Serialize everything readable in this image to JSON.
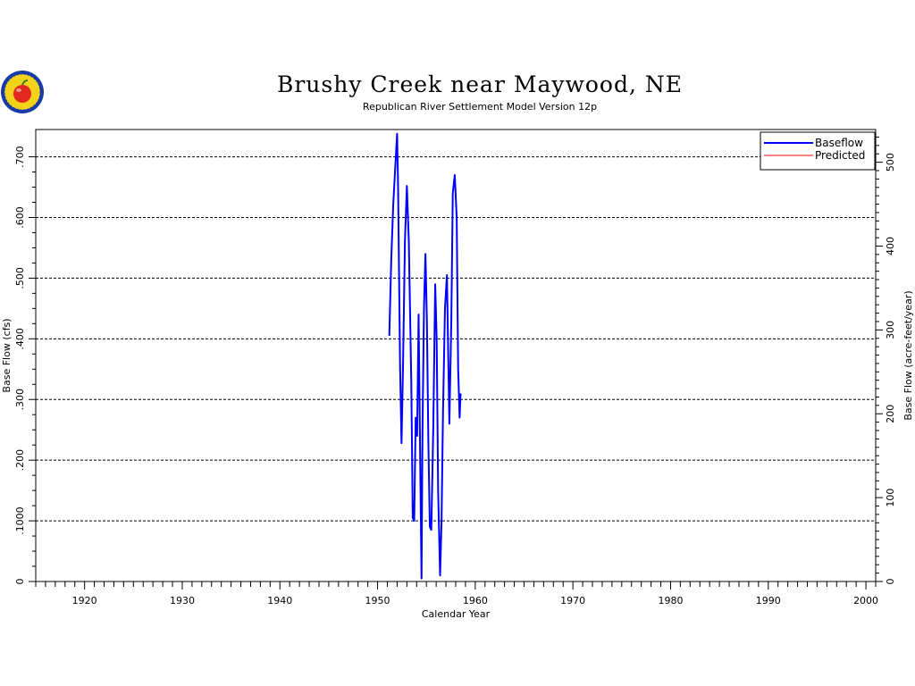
{
  "chart_data": {
    "type": "line",
    "title": "Brushy Creek near Maywood, NE",
    "subtitle": "Republican River Settlement Model Version 12p",
    "xlabel": "Calendar Year",
    "ylabel": "Base Flow (cfs)",
    "y2label": "Base Flow (acre-feet/year)",
    "xlim": [
      1915,
      2001
    ],
    "ylim": [
      0,
      0.745
    ],
    "y2lim": [
      0,
      539
    ],
    "x_ticks": [
      1920,
      1930,
      1940,
      1950,
      1960,
      1970,
      1980,
      1990,
      2000
    ],
    "y_ticks": [
      0,
      0.1,
      0.2,
      0.3,
      0.4,
      0.5,
      0.6,
      0.7
    ],
    "y_tick_labels": [
      "0",
      ".1000",
      ".200",
      ".300",
      ".400",
      ".500",
      ".600",
      ".700"
    ],
    "y2_ticks": [
      0,
      100,
      200,
      300,
      400,
      500
    ],
    "grid": "horizontal dashed",
    "legend_position": "top-right",
    "series": [
      {
        "name": "Baseflow",
        "color": "#0000ff",
        "x": [
          1951.2,
          1951.4,
          1951.6,
          1951.8,
          1952.0,
          1952.1,
          1952.3,
          1952.45,
          1952.6,
          1952.8,
          1953.0,
          1953.2,
          1953.45,
          1953.6,
          1953.75,
          1953.9,
          1954.05,
          1954.2,
          1954.35,
          1954.5,
          1954.6,
          1954.75,
          1954.9,
          1955.05,
          1955.2,
          1955.35,
          1955.5,
          1955.7,
          1955.9,
          1956.05,
          1956.2,
          1956.4,
          1956.55,
          1956.7,
          1956.9,
          1957.1,
          1957.35,
          1957.55,
          1957.7,
          1957.9,
          1958.1,
          1958.25,
          1958.4,
          1958.5
        ],
        "y": [
          0.405,
          0.53,
          0.62,
          0.68,
          0.738,
          0.65,
          0.36,
          0.228,
          0.35,
          0.56,
          0.652,
          0.56,
          0.33,
          0.105,
          0.1,
          0.27,
          0.24,
          0.44,
          0.22,
          0.005,
          0.25,
          0.45,
          0.54,
          0.43,
          0.23,
          0.09,
          0.085,
          0.25,
          0.49,
          0.4,
          0.15,
          0.01,
          0.1,
          0.28,
          0.45,
          0.505,
          0.26,
          0.43,
          0.64,
          0.67,
          0.6,
          0.35,
          0.27,
          0.31
        ]
      },
      {
        "name": "Predicted",
        "color": "#ff0000",
        "x": [],
        "y": []
      }
    ]
  }
}
